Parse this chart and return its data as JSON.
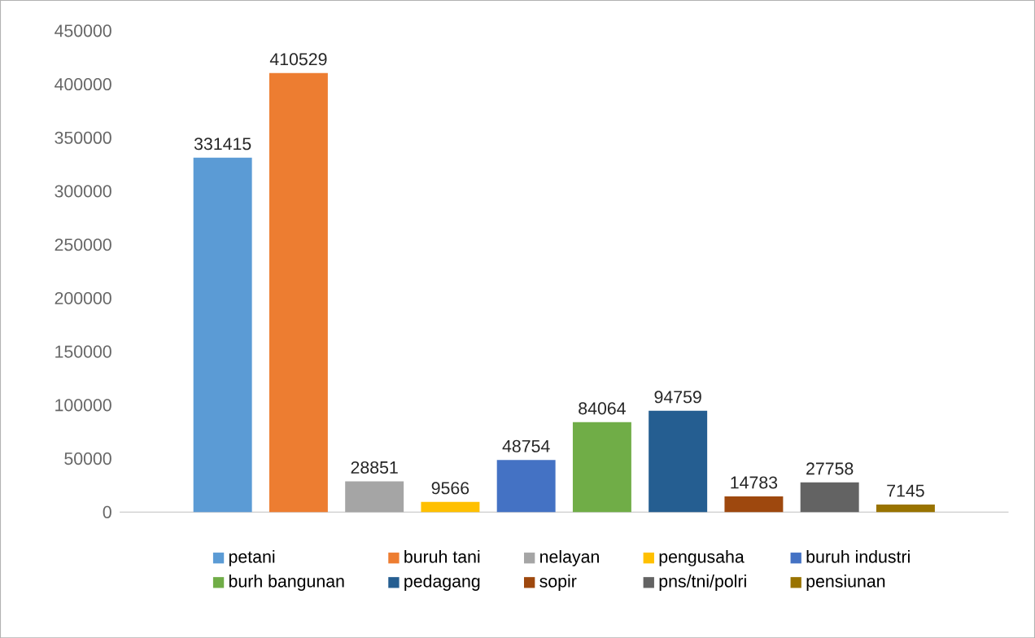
{
  "chart_data": {
    "type": "bar",
    "categories": [
      null
    ],
    "series": [
      {
        "name": "petani",
        "color": "#5b9bd5",
        "values": [
          331415
        ]
      },
      {
        "name": "buruh tani",
        "color": "#ed7d31",
        "values": [
          410529
        ]
      },
      {
        "name": "nelayan",
        "color": "#a5a5a5",
        "values": [
          28851
        ]
      },
      {
        "name": "pengusaha",
        "color": "#ffc000",
        "values": [
          9566
        ]
      },
      {
        "name": "buruh industri",
        "color": "#4472c4",
        "values": [
          48754
        ]
      },
      {
        "name": "burh bangunan",
        "color": "#70ad47",
        "values": [
          84064
        ]
      },
      {
        "name": "pedagang",
        "color": "#255e91",
        "values": [
          94759
        ]
      },
      {
        "name": "sopir",
        "color": "#9e480e",
        "values": [
          14783
        ]
      },
      {
        "name": "pns/tni/polri",
        "color": "#636363",
        "values": [
          27758
        ]
      },
      {
        "name": "pensiunan",
        "color": "#997300",
        "values": [
          7145
        ]
      }
    ],
    "ylim": [
      0,
      450000
    ],
    "yticks": [
      0,
      50000,
      100000,
      150000,
      200000,
      250000,
      300000,
      350000,
      400000,
      450000
    ],
    "data_labels": true,
    "legend": "bottom"
  }
}
